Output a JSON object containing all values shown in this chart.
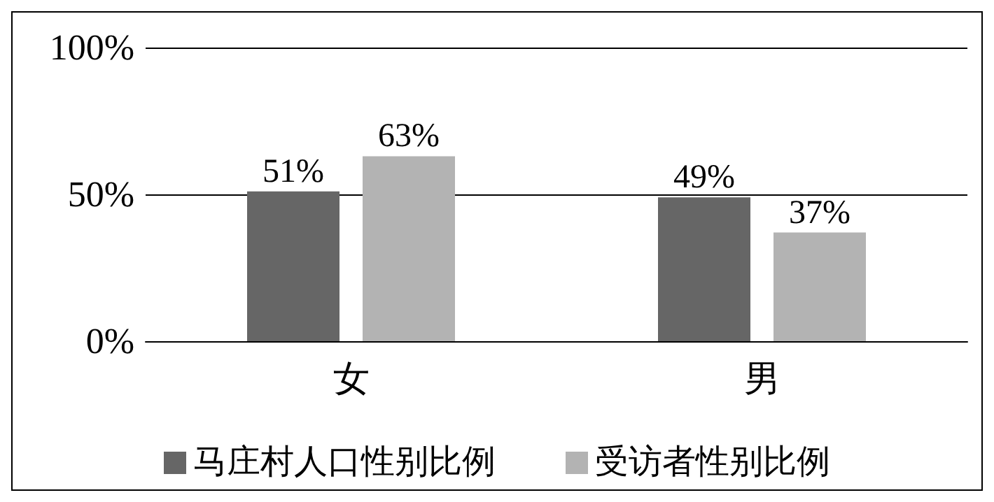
{
  "chart_data": {
    "type": "bar",
    "categories": [
      "女",
      "男"
    ],
    "series": [
      {
        "name": "马庄村人口性别比例",
        "color": "#666666",
        "values": [
          51,
          49
        ],
        "value_labels": [
          "51%",
          "49%"
        ]
      },
      {
        "name": "受访者性别比例",
        "color": "#b3b3b3",
        "values": [
          63,
          37
        ],
        "value_labels": [
          "63%",
          "37%"
        ]
      }
    ],
    "ylim": [
      0,
      100
    ],
    "yticks": [
      {
        "value": 0,
        "label": "0%"
      },
      {
        "value": 50,
        "label": "50%"
      },
      {
        "value": 100,
        "label": "100%"
      }
    ],
    "grid": "y",
    "legend": "bottom"
  }
}
